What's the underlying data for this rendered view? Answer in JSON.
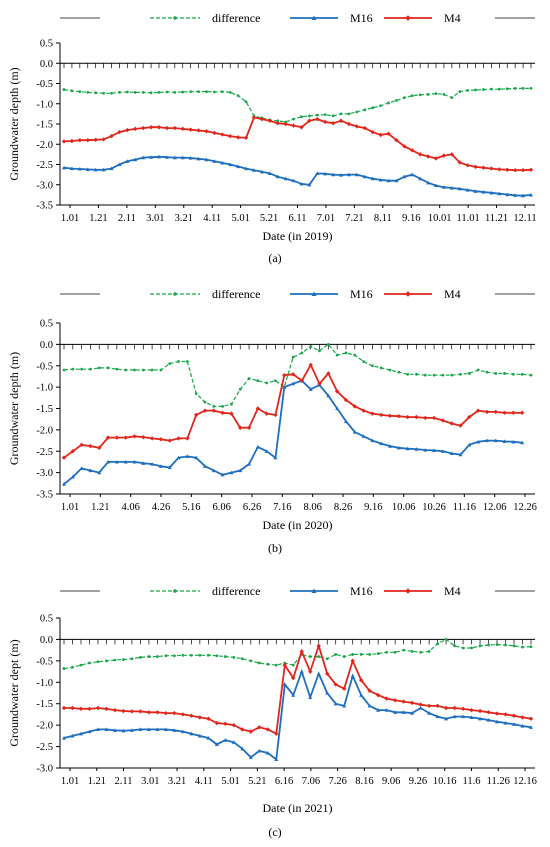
{
  "colors": {
    "difference": "#1aa84a",
    "M16": "#1f6fbf",
    "M4": "#e2261c",
    "axis": "#000000",
    "grid": "#bfbfbf"
  },
  "legend_labels": {
    "difference": "difference",
    "M16": "M16",
    "M4": "M4"
  },
  "chart_data": [
    {
      "type": "line",
      "panel_label": "(a)",
      "xlabel": "Date (in 2019)",
      "ylabel": "Groundwater depth (m)",
      "ylim": [
        -3.5,
        0.5
      ],
      "yticks": [
        "0.5",
        "0.0",
        "-0.5",
        "-1.0",
        "-1.5",
        "-2.0",
        "-2.5",
        "-3.0",
        "-3.5"
      ],
      "xtick_labels": [
        "1.01",
        "1.21",
        "2.11",
        "3.01",
        "3.21",
        "4.11",
        "5.01",
        "5.21",
        "6.11",
        "7.01",
        "7.21",
        "8.11",
        "9.16",
        "10.01",
        "11.01",
        "11.21",
        "12.11"
      ],
      "legend": "top",
      "series": [
        {
          "name": "difference",
          "values": [
            -0.65,
            -0.68,
            -0.7,
            -0.72,
            -0.73,
            -0.74,
            -0.74,
            -0.72,
            -0.71,
            -0.72,
            -0.72,
            -0.73,
            -0.72,
            -0.71,
            -0.72,
            -0.71,
            -0.7,
            -0.7,
            -0.7,
            -0.71,
            -0.7,
            -0.72,
            -0.8,
            -0.95,
            -1.3,
            -1.35,
            -1.4,
            -1.42,
            -1.45,
            -1.38,
            -1.32,
            -1.3,
            -1.28,
            -1.27,
            -1.3,
            -1.25,
            -1.25,
            -1.2,
            -1.15,
            -1.1,
            -1.05,
            -0.98,
            -0.92,
            -0.85,
            -0.8,
            -0.78,
            -0.77,
            -0.75,
            -0.77,
            -0.85,
            -0.7,
            -0.67,
            -0.66,
            -0.65,
            -0.64,
            -0.64,
            -0.63,
            -0.62,
            -0.62,
            -0.62
          ]
        },
        {
          "name": "M16",
          "values": [
            -2.58,
            -2.6,
            -2.61,
            -2.62,
            -2.63,
            -2.63,
            -2.6,
            -2.5,
            -2.42,
            -2.38,
            -2.33,
            -2.32,
            -2.31,
            -2.32,
            -2.33,
            -2.33,
            -2.34,
            -2.36,
            -2.38,
            -2.42,
            -2.46,
            -2.5,
            -2.55,
            -2.6,
            -2.64,
            -2.68,
            -2.72,
            -2.8,
            -2.85,
            -2.9,
            -2.98,
            -3.0,
            -2.72,
            -2.73,
            -2.75,
            -2.76,
            -2.75,
            -2.75,
            -2.8,
            -2.85,
            -2.88,
            -2.9,
            -2.9,
            -2.8,
            -2.75,
            -2.85,
            -2.95,
            -3.02,
            -3.06,
            -3.08,
            -3.1,
            -3.13,
            -3.16,
            -3.18,
            -3.2,
            -3.22,
            -3.24,
            -3.26,
            -3.27,
            -3.25
          ]
        },
        {
          "name": "M4",
          "values": [
            -1.93,
            -1.92,
            -1.9,
            -1.9,
            -1.89,
            -1.88,
            -1.8,
            -1.7,
            -1.65,
            -1.62,
            -1.6,
            -1.58,
            -1.58,
            -1.6,
            -1.6,
            -1.62,
            -1.64,
            -1.66,
            -1.68,
            -1.72,
            -1.76,
            -1.8,
            -1.83,
            -1.84,
            -1.34,
            -1.38,
            -1.42,
            -1.48,
            -1.5,
            -1.54,
            -1.58,
            -1.42,
            -1.38,
            -1.45,
            -1.48,
            -1.42,
            -1.5,
            -1.56,
            -1.6,
            -1.7,
            -1.77,
            -1.74,
            -1.9,
            -2.05,
            -2.15,
            -2.25,
            -2.3,
            -2.35,
            -2.28,
            -2.25,
            -2.45,
            -2.52,
            -2.56,
            -2.58,
            -2.6,
            -2.62,
            -2.63,
            -2.64,
            -2.64,
            -2.63
          ]
        }
      ]
    },
    {
      "type": "line",
      "panel_label": "(b)",
      "xlabel": "Date (in 2020)",
      "ylabel": "Groundwater depth (m)",
      "ylim": [
        -3.5,
        0.5
      ],
      "yticks": [
        "0.5",
        "0.0",
        "-0.5",
        "-1.0",
        "-1.5",
        "-2.0",
        "-2.5",
        "-3.0",
        "-3.5"
      ],
      "xtick_labels": [
        "1.01",
        "1.21",
        "4.06",
        "4.26",
        "5.16",
        "6.06",
        "6.26",
        "7.16",
        "8.06",
        "8.26",
        "9.16",
        "10.06",
        "10.26",
        "11.16",
        "12.06",
        "12.26"
      ],
      "legend": "top",
      "series": [
        {
          "name": "difference",
          "values": [
            -0.6,
            -0.58,
            -0.58,
            -0.58,
            -0.55,
            -0.55,
            -0.58,
            -0.6,
            -0.6,
            -0.6,
            -0.6,
            -0.6,
            -0.45,
            -0.4,
            -0.4,
            -1.15,
            -1.35,
            -1.45,
            -1.45,
            -1.4,
            -1.05,
            -0.8,
            -0.85,
            -0.9,
            -0.85,
            -1.0,
            -0.3,
            -0.2,
            -0.05,
            -0.15,
            -0.0,
            -0.25,
            -0.2,
            -0.25,
            -0.4,
            -0.5,
            -0.55,
            -0.6,
            -0.65,
            -0.7,
            -0.7,
            -0.72,
            -0.72,
            -0.72,
            -0.72,
            -0.7,
            -0.68,
            -0.6,
            -0.65,
            -0.68,
            -0.68,
            -0.7,
            -0.7,
            -0.72
          ]
        },
        {
          "name": "M16",
          "values": [
            -3.27,
            -3.1,
            -2.9,
            -2.95,
            -3.0,
            -2.75,
            -2.75,
            -2.75,
            -2.75,
            -2.78,
            -2.8,
            -2.85,
            -2.88,
            -2.65,
            -2.62,
            -2.65,
            -2.85,
            -2.95,
            -3.05,
            -3.0,
            -2.95,
            -2.8,
            -2.4,
            -2.5,
            -2.65,
            -1.0,
            -0.92,
            -0.85,
            -1.05,
            -0.95,
            -1.2,
            -1.5,
            -1.8,
            -2.05,
            -2.15,
            -2.25,
            -2.32,
            -2.38,
            -2.42,
            -2.44,
            -2.45,
            -2.47,
            -2.48,
            -2.5,
            -2.55,
            -2.58,
            -2.35,
            -2.28,
            -2.25,
            -2.25,
            -2.27,
            -2.28,
            -2.3
          ]
        },
        {
          "name": "M4",
          "values": [
            -2.65,
            -2.5,
            -2.35,
            -2.38,
            -2.42,
            -2.18,
            -2.18,
            -2.18,
            -2.15,
            -2.17,
            -2.2,
            -2.22,
            -2.25,
            -2.2,
            -2.2,
            -1.65,
            -1.55,
            -1.55,
            -1.6,
            -1.62,
            -1.95,
            -1.95,
            -1.5,
            -1.62,
            -1.65,
            -0.72,
            -0.7,
            -0.85,
            -0.48,
            -0.92,
            -0.68,
            -1.1,
            -1.3,
            -1.45,
            -1.55,
            -1.62,
            -1.65,
            -1.67,
            -1.68,
            -1.7,
            -1.7,
            -1.72,
            -1.72,
            -1.78,
            -1.85,
            -1.9,
            -1.7,
            -1.55,
            -1.58,
            -1.58,
            -1.6,
            -1.6,
            -1.6
          ]
        }
      ]
    },
    {
      "type": "line",
      "panel_label": "(c)",
      "xlabel": "Date (in 2021)",
      "ylabel": "Groundwater dept (m)",
      "ylim": [
        -3.0,
        0.5
      ],
      "yticks": [
        "0.5",
        "0.0",
        "-0.5",
        "-1.0",
        "-1.5",
        "-2.0",
        "-2.5",
        "-3.0"
      ],
      "xtick_labels": [
        "1.01",
        "1.21",
        "2.11",
        "3.01",
        "3.21",
        "4.11",
        "5.01",
        "5.21",
        "6.16",
        "7.06",
        "7.26",
        "8.16",
        "9.06",
        "9.26",
        "10.16",
        "11.6",
        "11.26",
        "12.16"
      ],
      "legend": "top",
      "series": [
        {
          "name": "difference",
          "values": [
            -0.68,
            -0.65,
            -0.6,
            -0.55,
            -0.52,
            -0.5,
            -0.48,
            -0.47,
            -0.45,
            -0.42,
            -0.4,
            -0.4,
            -0.38,
            -0.38,
            -0.37,
            -0.37,
            -0.37,
            -0.37,
            -0.38,
            -0.4,
            -0.42,
            -0.45,
            -0.5,
            -0.55,
            -0.58,
            -0.6,
            -0.55,
            -0.6,
            -0.35,
            -0.4,
            -0.4,
            -0.45,
            -0.35,
            -0.4,
            -0.35,
            -0.35,
            -0.35,
            -0.33,
            -0.3,
            -0.3,
            -0.25,
            -0.28,
            -0.3,
            -0.28,
            -0.1,
            -0.0,
            -0.15,
            -0.2,
            -0.2,
            -0.15,
            -0.13,
            -0.12,
            -0.13,
            -0.15,
            -0.18,
            -0.17
          ]
        },
        {
          "name": "M16",
          "values": [
            -2.3,
            -2.25,
            -2.2,
            -2.15,
            -2.1,
            -2.1,
            -2.12,
            -2.13,
            -2.12,
            -2.1,
            -2.1,
            -2.1,
            -2.1,
            -2.12,
            -2.15,
            -2.2,
            -2.25,
            -2.3,
            -2.45,
            -2.35,
            -2.4,
            -2.55,
            -2.75,
            -2.6,
            -2.65,
            -2.8,
            -1.05,
            -1.3,
            -0.75,
            -1.35,
            -0.8,
            -1.25,
            -1.5,
            -1.55,
            -0.85,
            -1.3,
            -1.55,
            -1.65,
            -1.65,
            -1.7,
            -1.7,
            -1.72,
            -1.6,
            -1.72,
            -1.8,
            -1.85,
            -1.8,
            -1.8,
            -1.82,
            -1.85,
            -1.88,
            -1.92,
            -1.95,
            -1.98,
            -2.02,
            -2.05
          ]
        },
        {
          "name": "M4",
          "values": [
            -1.6,
            -1.6,
            -1.62,
            -1.62,
            -1.6,
            -1.62,
            -1.65,
            -1.67,
            -1.68,
            -1.68,
            -1.7,
            -1.7,
            -1.72,
            -1.72,
            -1.75,
            -1.78,
            -1.82,
            -1.85,
            -1.95,
            -1.97,
            -2.0,
            -2.1,
            -2.15,
            -2.05,
            -2.1,
            -2.2,
            -0.6,
            -0.9,
            -0.28,
            -0.75,
            -0.15,
            -0.8,
            -1.05,
            -1.15,
            -0.5,
            -0.95,
            -1.2,
            -1.3,
            -1.38,
            -1.42,
            -1.45,
            -1.48,
            -1.52,
            -1.55,
            -1.55,
            -1.6,
            -1.6,
            -1.62,
            -1.65,
            -1.67,
            -1.7,
            -1.73,
            -1.75,
            -1.78,
            -1.82,
            -1.85
          ]
        }
      ]
    }
  ]
}
